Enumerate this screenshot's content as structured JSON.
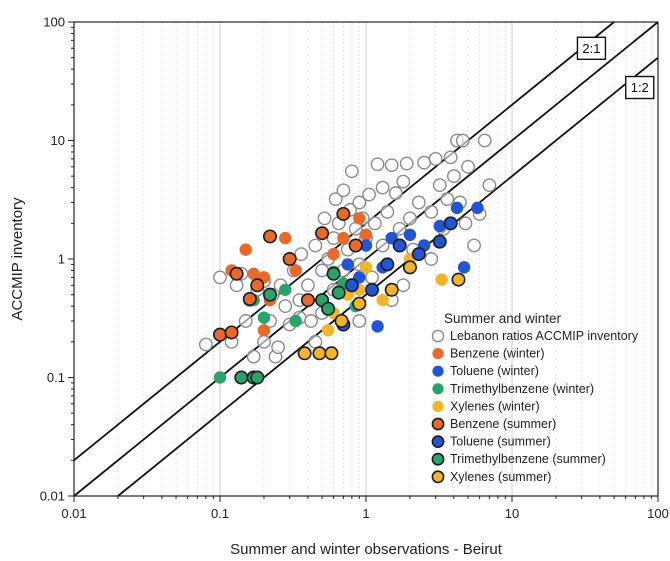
{
  "chart_data": {
    "type": "scatter",
    "xlabel": "Summer and winter observations - Beirut",
    "ylabel": "ACCMIP inventory",
    "xscale": "log",
    "yscale": "log",
    "xlim": [
      0.01,
      100
    ],
    "ylim": [
      0.01,
      100
    ],
    "x_ticks": [
      {
        "value": 0.01,
        "label": "0.01"
      },
      {
        "value": 0.1,
        "label": "0.1"
      },
      {
        "value": 1,
        "label": "1"
      },
      {
        "value": 10,
        "label": "10"
      },
      {
        "value": 100,
        "label": "100"
      }
    ],
    "y_ticks": [
      {
        "value": 0.01,
        "label": "0.01"
      },
      {
        "value": 0.1,
        "label": "0.1"
      },
      {
        "value": 1,
        "label": "1"
      },
      {
        "value": 10,
        "label": "10"
      },
      {
        "value": 100,
        "label": "100"
      }
    ],
    "grid": "vertical minor",
    "reference_lines": [
      {
        "label": "2:1",
        "factor": 2,
        "x_range": [
          0.01,
          50
        ]
      },
      {
        "label": "",
        "factor": 1,
        "x_range": [
          0.01,
          100
        ]
      },
      {
        "label": "1:2",
        "factor": 0.5,
        "x_range": [
          0.02,
          100
        ]
      }
    ],
    "legend": {
      "title": "Summer and winter",
      "position": "bottom-right"
    },
    "series": [
      {
        "name": "Lebanon ratios ACCMIP inventory",
        "marker": "hollow",
        "color": "#8a8a8a",
        "points": [
          [
            0.08,
            0.19
          ],
          [
            0.1,
            0.7
          ],
          [
            0.12,
            0.2
          ],
          [
            0.13,
            0.6
          ],
          [
            0.14,
            0.75
          ],
          [
            0.15,
            0.3
          ],
          [
            0.16,
            0.45
          ],
          [
            0.17,
            0.15
          ],
          [
            0.18,
            0.55
          ],
          [
            0.2,
            0.2
          ],
          [
            0.2,
            0.65
          ],
          [
            0.22,
            0.3
          ],
          [
            0.23,
            0.5
          ],
          [
            0.24,
            0.15
          ],
          [
            0.26,
            0.6
          ],
          [
            0.28,
            0.4
          ],
          [
            0.3,
            0.28
          ],
          [
            0.32,
            0.8
          ],
          [
            0.35,
            0.45
          ],
          [
            0.36,
            1.1
          ],
          [
            0.4,
            0.6
          ],
          [
            0.42,
            0.3
          ],
          [
            0.45,
            1.3
          ],
          [
            0.5,
            0.35
          ],
          [
            0.5,
            0.8
          ],
          [
            0.52,
            2.2
          ],
          [
            0.55,
            1.0
          ],
          [
            0.6,
            1.5
          ],
          [
            0.6,
            0.55
          ],
          [
            0.62,
            3.2
          ],
          [
            0.65,
            2.0
          ],
          [
            0.7,
            0.8
          ],
          [
            0.7,
            3.8
          ],
          [
            0.75,
            1.2
          ],
          [
            0.78,
            2.6
          ],
          [
            0.8,
            5.5
          ],
          [
            0.85,
            1.8
          ],
          [
            0.9,
            3.0
          ],
          [
            0.9,
            0.9
          ],
          [
            0.95,
            2.2
          ],
          [
            1.0,
            1.5
          ],
          [
            1.05,
            3.5
          ],
          [
            1.1,
            0.7
          ],
          [
            1.15,
            2.0
          ],
          [
            1.2,
            6.3
          ],
          [
            1.3,
            4.0
          ],
          [
            1.3,
            1.3
          ],
          [
            1.4,
            2.5
          ],
          [
            1.5,
            6.2
          ],
          [
            1.6,
            3.6
          ],
          [
            1.7,
            1.8
          ],
          [
            1.8,
            4.5
          ],
          [
            1.9,
            6.4
          ],
          [
            2.0,
            2.2
          ],
          [
            2.1,
            1.2
          ],
          [
            2.3,
            3.0
          ],
          [
            2.5,
            6.5
          ],
          [
            2.8,
            2.5
          ],
          [
            3.0,
            7.0
          ],
          [
            3.2,
            4.2
          ],
          [
            3.4,
            1.8
          ],
          [
            3.6,
            3.2
          ],
          [
            3.8,
            7.2
          ],
          [
            4.0,
            5.0
          ],
          [
            4.2,
            10.0
          ],
          [
            4.4,
            3.0
          ],
          [
            4.6,
            10.0
          ],
          [
            4.8,
            2.0
          ],
          [
            5.0,
            6.0
          ],
          [
            5.5,
            1.3
          ],
          [
            6.0,
            2.4
          ],
          [
            6.5,
            10.0
          ],
          [
            7.0,
            4.2
          ],
          [
            1.8,
            0.6
          ],
          [
            1.5,
            0.45
          ],
          [
            0.45,
            0.2
          ],
          [
            0.25,
            0.18
          ],
          [
            0.9,
            0.3
          ],
          [
            0.35,
            0.32
          ],
          [
            2.8,
            1.0
          ]
        ]
      },
      {
        "name": "Benzene (winter)",
        "marker": "filled",
        "color": "#e8692a",
        "points": [
          [
            0.12,
            0.8
          ],
          [
            0.15,
            1.2
          ],
          [
            0.17,
            0.75
          ],
          [
            0.2,
            0.7
          ],
          [
            0.22,
            0.45
          ],
          [
            0.28,
            1.5
          ],
          [
            0.33,
            0.8
          ],
          [
            0.6,
            1.1
          ],
          [
            0.7,
            1.5
          ],
          [
            0.9,
            2.2
          ],
          [
            1.0,
            1.6
          ],
          [
            0.2,
            0.25
          ]
        ]
      },
      {
        "name": "Toluene (winter)",
        "marker": "filled",
        "color": "#2255d4",
        "points": [
          [
            0.75,
            0.9
          ],
          [
            1.0,
            1.3
          ],
          [
            1.2,
            0.27
          ],
          [
            1.5,
            1.5
          ],
          [
            2.0,
            1.6
          ],
          [
            2.5,
            1.3
          ],
          [
            3.2,
            1.9
          ],
          [
            4.2,
            2.7
          ],
          [
            4.7,
            0.85
          ],
          [
            5.8,
            2.7
          ],
          [
            0.9,
            0.7
          ],
          [
            1.3,
            0.85
          ]
        ]
      },
      {
        "name": "Trimethylbenzene (winter)",
        "marker": "filled",
        "color": "#2aa36a",
        "points": [
          [
            0.1,
            0.1
          ],
          [
            0.17,
            0.45
          ],
          [
            0.2,
            0.32
          ],
          [
            0.28,
            0.55
          ],
          [
            0.33,
            0.3
          ],
          [
            0.6,
            0.78
          ],
          [
            0.7,
            0.62
          ],
          [
            0.85,
            0.4
          ]
        ]
      },
      {
        "name": "Xylenes (winter)",
        "marker": "filled",
        "color": "#f2b42a",
        "points": [
          [
            0.6,
            0.35
          ],
          [
            0.75,
            0.5
          ],
          [
            0.9,
            0.55
          ],
          [
            1.0,
            0.85
          ],
          [
            1.3,
            0.45
          ],
          [
            2.0,
            1.0
          ],
          [
            3.3,
            0.67
          ],
          [
            0.55,
            0.25
          ]
        ]
      },
      {
        "name": "Benzene (summer)",
        "marker": "outlined",
        "color": "#e8692a",
        "points": [
          [
            0.1,
            0.23
          ],
          [
            0.12,
            0.24
          ],
          [
            0.13,
            0.75
          ],
          [
            0.16,
            0.46
          ],
          [
            0.18,
            0.6
          ],
          [
            0.22,
            1.55
          ],
          [
            0.3,
            1.0
          ],
          [
            0.5,
            1.65
          ],
          [
            0.7,
            2.4
          ],
          [
            0.85,
            1.3
          ],
          [
            0.4,
            0.45
          ]
        ]
      },
      {
        "name": "Toluene (summer)",
        "marker": "outlined",
        "color": "#2255d4",
        "points": [
          [
            0.7,
            0.28
          ],
          [
            0.8,
            0.6
          ],
          [
            1.1,
            0.55
          ],
          [
            1.4,
            0.9
          ],
          [
            2.3,
            1.1
          ],
          [
            3.2,
            1.4
          ],
          [
            3.8,
            2.0
          ],
          [
            1.7,
            1.3
          ]
        ]
      },
      {
        "name": "Trimethylbenzene (summer)",
        "marker": "outlined",
        "color": "#2aa36a",
        "points": [
          [
            0.14,
            0.1
          ],
          [
            0.17,
            0.1
          ],
          [
            0.18,
            0.1
          ],
          [
            0.22,
            0.5
          ],
          [
            0.5,
            0.45
          ],
          [
            0.6,
            0.75
          ],
          [
            0.65,
            0.52
          ],
          [
            0.55,
            0.38
          ]
        ]
      },
      {
        "name": "Xylenes (summer)",
        "marker": "outlined",
        "color": "#f2b42a",
        "points": [
          [
            0.38,
            0.16
          ],
          [
            0.48,
            0.16
          ],
          [
            0.58,
            0.16
          ],
          [
            0.68,
            0.3
          ],
          [
            0.9,
            0.42
          ],
          [
            1.5,
            0.55
          ],
          [
            2.0,
            0.85
          ],
          [
            4.3,
            0.67
          ]
        ]
      }
    ]
  }
}
